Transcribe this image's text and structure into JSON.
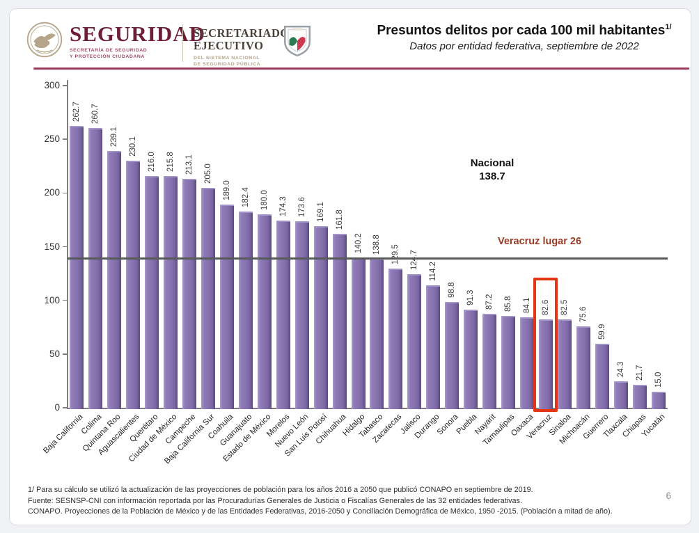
{
  "header": {
    "brand": {
      "name": "SEGURIDAD",
      "tagline_line1": "SECRETARÍA DE SEGURIDAD",
      "tagline_line2": "Y PROTECCIÓN CIUDADANA"
    },
    "org": {
      "line1": "SECRETARIADO",
      "line2": "EJECUTIVO",
      "sub1": "DEL SISTEMA NACIONAL",
      "sub2": "DE SEGURIDAD PÚBLICA"
    },
    "title": "Presuntos delitos por cada 100 mil habitantes",
    "title_superscript": "1/",
    "subtitle": "Datos por entidad federativa, septiembre de 2022"
  },
  "chart_data": {
    "type": "bar",
    "title": "Presuntos delitos por cada 100 mil habitantes",
    "categories": [
      "Baja California",
      "Colima",
      "Quintana Roo",
      "Aguascalientes",
      "Querétaro",
      "Ciudad de México",
      "Campeche",
      "Baja California Sur",
      "Coahuila",
      "Guanajuato",
      "Estado de México",
      "Morelos",
      "Nuevo León",
      "San Luis Potosí",
      "Chihuahua",
      "Hidalgo",
      "Tabasco",
      "Zacatecas",
      "Jalisco",
      "Durango",
      "Sonora",
      "Puebla",
      "Nayarit",
      "Tamaulipas",
      "Oaxaca",
      "Veracruz",
      "Sinaloa",
      "Michoacán",
      "Guerrero",
      "Tlaxcala",
      "Chiapas",
      "Yucatán"
    ],
    "values": [
      262.7,
      260.7,
      239.1,
      230.1,
      216.0,
      215.8,
      213.1,
      205.0,
      189.0,
      182.4,
      180.0,
      174.3,
      173.6,
      169.1,
      161.8,
      140.2,
      138.8,
      129.5,
      124.7,
      114.2,
      98.8,
      91.3,
      87.2,
      85.8,
      84.1,
      82.6,
      82.5,
      75.6,
      59.9,
      24.3,
      21.7,
      15.0
    ],
    "ylim": [
      0,
      300
    ],
    "yticks": [
      0,
      50,
      100,
      150,
      200,
      250,
      300
    ],
    "grid": false,
    "legend": "none",
    "bar_color": "#8571ad",
    "reference_line": {
      "label": "Nacional",
      "value": 138.7,
      "value_text": "138.7",
      "color": "#58595b"
    },
    "highlight": {
      "category": "Veracruz",
      "label": "Veracruz lugar 26",
      "rank": 26,
      "box_color": "#e53517"
    }
  },
  "annotations": {
    "nacional_label": "Nacional",
    "nacional_value": "138.7",
    "veracruz_label": "Veracruz lugar  26"
  },
  "footnotes": [
    "1/ Para su cálculo se utilizó la actualización de las proyecciones de población para los años 2016 a 2050 que publicó CONAPO en septiembre de 2019.",
    "Fuente: SESNSP-CNI con información reportada por las Procuradurías Generales de Justicia o Fiscalías Generales de las 32 entidades federativas.",
    "CONAPO. Proyecciones de la Población de México y de las Entidades Federativas, 2016-2050 y Conciliación Demográfica de México, 1950 -2015. (Población a mitad de año)."
  ],
  "page": {
    "number": "6"
  },
  "colors": {
    "brand_maroon": "#6d1d38",
    "header_rule": "#9a3a5c",
    "bar_purple": "#8571ad",
    "highlight_red": "#e53517",
    "veracruz_text": "#9a3a24"
  }
}
